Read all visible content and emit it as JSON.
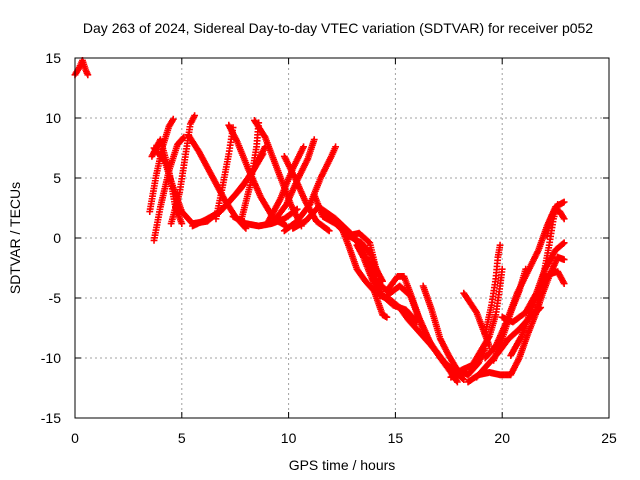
{
  "chart_data": {
    "type": "scatter",
    "title": "Day 263 of 2024, Sidereal Day-to-day VTEC variation (SDTVAR) for receiver p052",
    "xlabel": "GPS time / hours",
    "ylabel": "SDTVAR / TECUs",
    "xlim": [
      0,
      25
    ],
    "ylim": [
      -15,
      15
    ],
    "xticks": [
      0,
      5,
      10,
      15,
      20,
      25
    ],
    "yticks": [
      -15,
      -10,
      -5,
      0,
      5,
      10,
      15
    ],
    "grid": true,
    "marker": "plus",
    "color": "#ff0000",
    "series": [
      {
        "values": [
          [
            0.0,
            13.6
          ],
          [
            0.2,
            14.2
          ],
          [
            0.35,
            14.8
          ],
          [
            0.5,
            14.0
          ],
          [
            0.6,
            13.6
          ]
        ]
      },
      {
        "values": [
          [
            3.5,
            2.2
          ],
          [
            3.8,
            5.2
          ],
          [
            4.1,
            7.6
          ],
          [
            4.4,
            9.3
          ],
          [
            4.6,
            9.9
          ]
        ]
      },
      {
        "values": [
          [
            3.6,
            6.8
          ],
          [
            4.0,
            8.2
          ],
          [
            4.4,
            5.6
          ],
          [
            4.7,
            2.6
          ],
          [
            5.0,
            1.2
          ]
        ]
      },
      {
        "values": [
          [
            3.7,
            -0.2
          ],
          [
            4.0,
            2.6
          ],
          [
            4.4,
            5.6
          ],
          [
            4.8,
            7.8
          ],
          [
            5.1,
            8.4
          ]
        ]
      },
      {
        "values": [
          [
            3.7,
            7.5
          ],
          [
            4.2,
            6.4
          ],
          [
            4.6,
            4.2
          ],
          [
            5.0,
            2.2
          ],
          [
            5.5,
            1.2
          ],
          [
            6.2,
            1.4
          ],
          [
            7.0,
            2.6
          ],
          [
            7.8,
            4.2
          ],
          [
            8.4,
            5.8
          ],
          [
            8.9,
            7.6
          ]
        ]
      },
      {
        "values": [
          [
            4.5,
            1.2
          ],
          [
            4.9,
            3.8
          ],
          [
            5.2,
            7.2
          ],
          [
            5.4,
            9.5
          ],
          [
            5.6,
            10.2
          ]
        ]
      },
      {
        "values": [
          [
            5.3,
            8.6
          ],
          [
            5.8,
            7.2
          ],
          [
            6.4,
            5.2
          ],
          [
            7.0,
            3.2
          ],
          [
            7.5,
            1.8
          ],
          [
            8.0,
            0.8
          ]
        ]
      },
      {
        "values": [
          [
            5.5,
            1.0
          ],
          [
            6.1,
            1.5
          ],
          [
            6.8,
            2.2
          ],
          [
            7.5,
            3.6
          ],
          [
            8.2,
            5.2
          ],
          [
            8.8,
            7.0
          ]
        ]
      },
      {
        "values": [
          [
            6.6,
            1.6
          ],
          [
            6.9,
            4.2
          ],
          [
            7.2,
            7.0
          ],
          [
            7.4,
            9.2
          ]
        ]
      },
      {
        "values": [
          [
            7.2,
            9.4
          ],
          [
            7.6,
            8.0
          ],
          [
            8.1,
            5.8
          ],
          [
            8.7,
            3.4
          ],
          [
            9.3,
            1.6
          ],
          [
            9.9,
            1.0
          ]
        ]
      },
      {
        "values": [
          [
            7.4,
            1.8
          ],
          [
            8.0,
            1.2
          ],
          [
            8.6,
            1.0
          ],
          [
            9.2,
            1.2
          ],
          [
            9.8,
            1.6
          ],
          [
            10.4,
            2.4
          ]
        ]
      },
      {
        "values": [
          [
            7.8,
            1.6
          ],
          [
            8.2,
            4.4
          ],
          [
            8.5,
            7.6
          ],
          [
            8.6,
            9.6
          ]
        ]
      },
      {
        "values": [
          [
            8.4,
            9.8
          ],
          [
            8.9,
            8.4
          ],
          [
            9.5,
            5.6
          ],
          [
            10.1,
            2.8
          ],
          [
            10.6,
            1.0
          ]
        ]
      },
      {
        "values": [
          [
            9.0,
            1.2
          ],
          [
            9.6,
            3.2
          ],
          [
            10.2,
            5.8
          ],
          [
            10.7,
            7.6
          ]
        ]
      },
      {
        "values": [
          [
            9.4,
            1.6
          ],
          [
            9.9,
            2.8
          ],
          [
            10.4,
            4.8
          ],
          [
            10.9,
            6.6
          ],
          [
            11.2,
            8.2
          ]
        ]
      },
      {
        "values": [
          [
            9.8,
            6.8
          ],
          [
            10.3,
            5.0
          ],
          [
            10.8,
            3.0
          ],
          [
            11.3,
            1.4
          ],
          [
            11.9,
            0.6
          ]
        ]
      },
      {
        "values": [
          [
            9.8,
            0.6
          ],
          [
            10.4,
            1.4
          ],
          [
            11.0,
            2.8
          ],
          [
            11.5,
            5.0
          ],
          [
            12.0,
            6.8
          ],
          [
            12.2,
            7.6
          ]
        ]
      },
      {
        "values": [
          [
            10.2,
            0.8
          ],
          [
            10.8,
            1.4
          ],
          [
            11.4,
            2.6
          ],
          [
            12.2,
            1.6
          ],
          [
            12.9,
            0.4
          ],
          [
            13.4,
            -0.8
          ],
          [
            13.9,
            -2.6
          ],
          [
            14.4,
            -4.8
          ],
          [
            14.9,
            -5.6
          ],
          [
            15.5,
            -6.0
          ],
          [
            16.0,
            -7.0
          ]
        ]
      },
      {
        "values": [
          [
            11.2,
            3.6
          ],
          [
            11.6,
            1.8
          ],
          [
            12.2,
            1.2
          ],
          [
            12.8,
            0.2
          ],
          [
            13.4,
            -0.4
          ],
          [
            13.8,
            -1.2
          ],
          [
            14.2,
            -3.0
          ]
        ]
      },
      {
        "values": [
          [
            12.4,
            1.2
          ],
          [
            12.8,
            -0.6
          ],
          [
            13.2,
            -2.6
          ],
          [
            13.6,
            -3.6
          ],
          [
            14.0,
            -4.4
          ],
          [
            14.4,
            -6.4
          ],
          [
            14.6,
            -6.6
          ]
        ]
      },
      {
        "values": [
          [
            12.8,
            0.2
          ],
          [
            13.3,
            0.4
          ],
          [
            13.8,
            -0.4
          ],
          [
            14.1,
            -2.6
          ],
          [
            14.4,
            -3.6
          ]
        ]
      },
      {
        "values": [
          [
            13.2,
            -0.6
          ],
          [
            13.5,
            -1.6
          ],
          [
            13.9,
            -3.4
          ],
          [
            14.3,
            -4.8
          ],
          [
            14.8,
            -5.2
          ],
          [
            15.2,
            -5.8
          ],
          [
            15.6,
            -6.8
          ],
          [
            16.0,
            -7.6
          ],
          [
            16.4,
            -8.4
          ],
          [
            16.9,
            -9.4
          ],
          [
            17.4,
            -10.6
          ],
          [
            17.8,
            -11.8
          ]
        ]
      },
      {
        "values": [
          [
            14.0,
            -3.4
          ],
          [
            14.6,
            -4.4
          ],
          [
            15.1,
            -3.2
          ],
          [
            15.4,
            -3.2
          ],
          [
            15.7,
            -4.6
          ],
          [
            16.1,
            -6.6
          ],
          [
            16.6,
            -8.6
          ],
          [
            17.1,
            -10.0
          ],
          [
            17.6,
            -11.2
          ],
          [
            17.9,
            -12.0
          ]
        ]
      },
      {
        "values": [
          [
            14.6,
            -4.8
          ],
          [
            15.2,
            -4.0
          ],
          [
            15.7,
            -4.8
          ],
          [
            16.2,
            -7.2
          ],
          [
            16.7,
            -9.0
          ],
          [
            17.2,
            -10.2
          ],
          [
            17.7,
            -11.0
          ],
          [
            18.2,
            -11.8
          ]
        ]
      },
      {
        "values": [
          [
            16.3,
            -4.0
          ],
          [
            16.7,
            -6.0
          ],
          [
            17.1,
            -8.4
          ],
          [
            17.5,
            -9.8
          ],
          [
            17.9,
            -11.0
          ],
          [
            18.4,
            -11.4
          ],
          [
            18.9,
            -10.4
          ],
          [
            19.2,
            -9.2
          ]
        ]
      },
      {
        "values": [
          [
            17.6,
            -11.6
          ],
          [
            18.1,
            -11.0
          ],
          [
            18.6,
            -10.6
          ],
          [
            19.0,
            -9.4
          ],
          [
            19.4,
            -8.2
          ],
          [
            19.7,
            -6.4
          ],
          [
            19.9,
            -4.0
          ],
          [
            20.0,
            -2.6
          ]
        ]
      },
      {
        "values": [
          [
            18.2,
            -4.6
          ],
          [
            18.5,
            -5.4
          ],
          [
            18.8,
            -6.2
          ],
          [
            19.1,
            -7.6
          ],
          [
            19.4,
            -9.0
          ]
        ]
      },
      {
        "values": [
          [
            18.4,
            -12.0
          ],
          [
            18.9,
            -11.4
          ],
          [
            19.4,
            -11.2
          ],
          [
            19.9,
            -11.4
          ],
          [
            20.4,
            -11.4
          ],
          [
            20.8,
            -10.0
          ],
          [
            21.2,
            -8.0
          ],
          [
            21.6,
            -6.2
          ],
          [
            21.9,
            -4.6
          ],
          [
            22.2,
            -3.2
          ],
          [
            22.6,
            -1.6
          ],
          [
            22.9,
            -1.8
          ]
        ]
      },
      {
        "values": [
          [
            18.8,
            -11.6
          ],
          [
            19.3,
            -10.6
          ],
          [
            19.8,
            -9.6
          ],
          [
            20.3,
            -8.4
          ],
          [
            20.8,
            -7.6
          ],
          [
            21.3,
            -6.6
          ],
          [
            21.8,
            -5.8
          ]
        ]
      },
      {
        "values": [
          [
            19.2,
            -8.0
          ],
          [
            19.5,
            -5.6
          ],
          [
            19.7,
            -3.4
          ],
          [
            19.8,
            -1.6
          ],
          [
            19.9,
            -0.6
          ]
        ]
      },
      {
        "values": [
          [
            19.2,
            -10.0
          ],
          [
            19.7,
            -9.0
          ],
          [
            20.2,
            -7.0
          ],
          [
            20.7,
            -4.6
          ],
          [
            21.2,
            -2.8
          ],
          [
            21.7,
            -1.0
          ],
          [
            22.1,
            1.0
          ],
          [
            22.5,
            2.6
          ],
          [
            22.9,
            3.0
          ]
        ]
      },
      {
        "values": [
          [
            19.6,
            -10.2
          ],
          [
            20.0,
            -8.4
          ],
          [
            20.4,
            -6.2
          ],
          [
            20.8,
            -4.4
          ],
          [
            21.1,
            -2.6
          ]
        ]
      },
      {
        "values": [
          [
            20.0,
            -6.6
          ],
          [
            20.5,
            -7.0
          ],
          [
            21.1,
            -6.2
          ],
          [
            21.6,
            -4.6
          ],
          [
            22.0,
            -2.6
          ],
          [
            22.5,
            -1.0
          ],
          [
            22.9,
            -0.4
          ]
        ]
      },
      {
        "values": [
          [
            20.4,
            -9.8
          ],
          [
            20.9,
            -8.2
          ],
          [
            21.4,
            -5.8
          ],
          [
            21.8,
            -4.0
          ],
          [
            22.2,
            -3.0
          ],
          [
            22.6,
            -2.8
          ],
          [
            22.9,
            -3.8
          ]
        ]
      },
      {
        "values": [
          [
            21.6,
            -6.0
          ],
          [
            21.9,
            -3.4
          ],
          [
            22.2,
            -0.6
          ],
          [
            22.4,
            1.6
          ],
          [
            22.6,
            2.8
          ]
        ]
      },
      {
        "values": [
          [
            22.1,
            0.2
          ],
          [
            22.3,
            1.8
          ],
          [
            22.5,
            2.4
          ],
          [
            22.7,
            2.2
          ],
          [
            22.9,
            1.6
          ]
        ]
      }
    ]
  }
}
